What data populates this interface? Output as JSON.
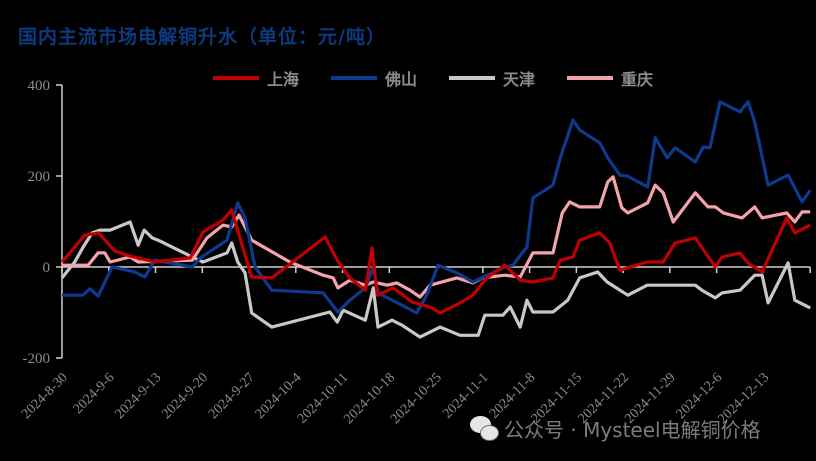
{
  "title": "国内主流市场电解铜升水（单位：元/吨）",
  "legend": [
    {
      "label": "上海",
      "color": "#c00000"
    },
    {
      "label": "佛山",
      "color": "#0d3a8c"
    },
    {
      "label": "天津",
      "color": "#c8c8c8"
    },
    {
      "label": "重庆",
      "color": "#f4a3ac"
    }
  ],
  "watermark": {
    "icon": "wechat-icon",
    "text": "公众号 · Mysteel电解铜价格"
  },
  "chart_data": {
    "type": "line",
    "title": "国内主流市场电解铜升水（单位：元/吨）",
    "xlabel": "",
    "ylabel": "元/吨",
    "ylim": [
      -200,
      400
    ],
    "yticks": [
      -200,
      0,
      200,
      400
    ],
    "x_unit": "days since 2024-8-30",
    "xlim": [
      0,
      112
    ],
    "xtick_labels": [
      "2024-8-30",
      "2024-9-6",
      "2024-9-13",
      "2024-9-20",
      "2024-9-27",
      "2024-10-4",
      "2024-10-11",
      "2024-10-18",
      "2024-10-25",
      "2024-11-1",
      "2024-11-8",
      "2024-11-15",
      "2024-11-22",
      "2024-11-29",
      "2024-12-6",
      "2024-12-13"
    ],
    "grid": false,
    "legend_position": "top",
    "series": [
      {
        "name": "上海",
        "color": "#c00000",
        "points": [
          [
            0,
            11
          ],
          [
            3.4,
            70
          ],
          [
            5.5,
            75
          ],
          [
            7.9,
            35
          ],
          [
            10.2,
            24
          ],
          [
            13.9,
            11
          ],
          [
            19.2,
            20
          ],
          [
            21.1,
            77
          ],
          [
            24.1,
            103
          ],
          [
            25.4,
            125
          ],
          [
            28.4,
            -22
          ],
          [
            31.4,
            -24
          ],
          [
            39.4,
            66
          ],
          [
            41.2,
            15
          ],
          [
            43.1,
            -24
          ],
          [
            45.4,
            -51
          ],
          [
            46.4,
            42
          ],
          [
            47.2,
            -62
          ],
          [
            49.6,
            -46
          ],
          [
            52.4,
            -77
          ],
          [
            55.1,
            -88
          ],
          [
            56.6,
            -101
          ],
          [
            59.6,
            -79
          ],
          [
            61.5,
            -62
          ],
          [
            63.6,
            -24
          ],
          [
            66.3,
            4
          ],
          [
            68.6,
            -29
          ],
          [
            70.5,
            -33
          ],
          [
            73.5,
            -24
          ],
          [
            74.6,
            15
          ],
          [
            76.5,
            22
          ],
          [
            77.5,
            59
          ],
          [
            80.5,
            75
          ],
          [
            82.0,
            53
          ],
          [
            83.5,
            -7
          ],
          [
            87.6,
            11
          ],
          [
            90.0,
            11
          ],
          [
            91.8,
            53
          ],
          [
            94.8,
            64
          ],
          [
            97.8,
            0
          ],
          [
            98.8,
            22
          ],
          [
            101.5,
            31
          ],
          [
            102.7,
            9
          ],
          [
            104.8,
            -11
          ],
          [
            108.5,
            108
          ],
          [
            109.7,
            75
          ],
          [
            112.0,
            92
          ]
        ]
      },
      {
        "name": "佛山",
        "color": "#0d3a8c",
        "points": [
          [
            0,
            -62
          ],
          [
            3.1,
            -62
          ],
          [
            4.2,
            -48
          ],
          [
            5.4,
            -64
          ],
          [
            7.5,
            0
          ],
          [
            10.9,
            -11
          ],
          [
            12.4,
            -22
          ],
          [
            13.9,
            15
          ],
          [
            19.5,
            0
          ],
          [
            20.7,
            20
          ],
          [
            24.7,
            59
          ],
          [
            26.3,
            141
          ],
          [
            27.4,
            108
          ],
          [
            28.9,
            0
          ],
          [
            31.4,
            -51
          ],
          [
            39.1,
            -57
          ],
          [
            41.3,
            -99
          ],
          [
            43.1,
            -73
          ],
          [
            45.4,
            -46
          ],
          [
            46.6,
            0
          ],
          [
            47.3,
            -57
          ],
          [
            50.9,
            -84
          ],
          [
            53.1,
            -101
          ],
          [
            54.6,
            -62
          ],
          [
            56.3,
            4
          ],
          [
            59.1,
            -13
          ],
          [
            61.5,
            -33
          ],
          [
            66.3,
            0
          ],
          [
            67.5,
            4
          ],
          [
            69.6,
            44
          ],
          [
            70.5,
            152
          ],
          [
            73.5,
            180
          ],
          [
            74.6,
            240
          ],
          [
            76.5,
            323
          ],
          [
            77.5,
            301
          ],
          [
            80.5,
            273
          ],
          [
            81.7,
            240
          ],
          [
            83.5,
            202
          ],
          [
            84.6,
            200
          ],
          [
            87.7,
            176
          ],
          [
            88.8,
            284
          ],
          [
            90.6,
            240
          ],
          [
            91.8,
            262
          ],
          [
            94.8,
            231
          ],
          [
            96.0,
            264
          ],
          [
            97.0,
            262
          ],
          [
            98.5,
            363
          ],
          [
            101.5,
            341
          ],
          [
            102.7,
            363
          ],
          [
            103.7,
            319
          ],
          [
            105.7,
            180
          ],
          [
            108.7,
            202
          ],
          [
            110.0,
            165
          ],
          [
            110.8,
            143
          ],
          [
            112.0,
            169
          ]
        ]
      },
      {
        "name": "天津",
        "color": "#c8c8c8",
        "points": [
          [
            0,
            -24
          ],
          [
            1.9,
            11
          ],
          [
            3.1,
            42
          ],
          [
            4.5,
            75
          ],
          [
            5.7,
            81
          ],
          [
            7.2,
            81
          ],
          [
            10.2,
            99
          ],
          [
            11.4,
            48
          ],
          [
            12.3,
            81
          ],
          [
            13.5,
            64
          ],
          [
            14.4,
            59
          ],
          [
            19.5,
            22
          ],
          [
            21.1,
            11
          ],
          [
            24.7,
            31
          ],
          [
            25.4,
            53
          ],
          [
            26.3,
            11
          ],
          [
            27.4,
            -13
          ],
          [
            28.4,
            -101
          ],
          [
            31.4,
            -132
          ],
          [
            40.1,
            -99
          ],
          [
            41.2,
            -121
          ],
          [
            42.1,
            -95
          ],
          [
            45.4,
            -117
          ],
          [
            46.6,
            -46
          ],
          [
            47.3,
            -132
          ],
          [
            49.4,
            -117
          ],
          [
            50.9,
            -128
          ],
          [
            53.6,
            -154
          ],
          [
            56.6,
            -132
          ],
          [
            59.6,
            -150
          ],
          [
            62.3,
            -150
          ],
          [
            63.3,
            -106
          ],
          [
            66.0,
            -106
          ],
          [
            67.1,
            -88
          ],
          [
            68.6,
            -132
          ],
          [
            69.6,
            -73
          ],
          [
            70.5,
            -99
          ],
          [
            73.5,
            -99
          ],
          [
            75.7,
            -73
          ],
          [
            77.5,
            -24
          ],
          [
            80.2,
            -11
          ],
          [
            81.6,
            -33
          ],
          [
            84.7,
            -62
          ],
          [
            87.6,
            -40
          ],
          [
            94.8,
            -40
          ],
          [
            95.8,
            -51
          ],
          [
            97.8,
            -68
          ],
          [
            98.8,
            -57
          ],
          [
            101.5,
            -51
          ],
          [
            103.7,
            -18
          ],
          [
            104.8,
            -18
          ],
          [
            105.7,
            -79
          ],
          [
            108.7,
            9
          ],
          [
            109.7,
            -73
          ],
          [
            112.0,
            -90
          ]
        ]
      },
      {
        "name": "重庆",
        "color": "#f4a3ac",
        "points": [
          [
            0,
            4
          ],
          [
            3.9,
            4
          ],
          [
            5.4,
            31
          ],
          [
            6.4,
            31
          ],
          [
            7.2,
            11
          ],
          [
            10.2,
            22
          ],
          [
            11.4,
            11
          ],
          [
            19.5,
            15
          ],
          [
            21.7,
            64
          ],
          [
            24.1,
            92
          ],
          [
            25.4,
            88
          ],
          [
            26.5,
            114
          ],
          [
            28.4,
            59
          ],
          [
            34.1,
            11
          ],
          [
            39.1,
            -18
          ],
          [
            40.6,
            -24
          ],
          [
            41.3,
            -46
          ],
          [
            43.1,
            -29
          ],
          [
            45.4,
            -40
          ],
          [
            46.6,
            -33
          ],
          [
            48.7,
            -40
          ],
          [
            50.1,
            -35
          ],
          [
            52.1,
            -51
          ],
          [
            53.6,
            -66
          ],
          [
            55.1,
            -40
          ],
          [
            59.1,
            -24
          ],
          [
            61.5,
            -35
          ],
          [
            62.9,
            -24
          ],
          [
            66.3,
            -18
          ],
          [
            68.6,
            -22
          ],
          [
            70.5,
            31
          ],
          [
            73.5,
            31
          ],
          [
            74.9,
            119
          ],
          [
            76.0,
            143
          ],
          [
            77.5,
            132
          ],
          [
            80.5,
            132
          ],
          [
            81.7,
            187
          ],
          [
            82.5,
            198
          ],
          [
            83.8,
            130
          ],
          [
            84.7,
            119
          ],
          [
            87.7,
            141
          ],
          [
            88.8,
            180
          ],
          [
            90.0,
            163
          ],
          [
            91.5,
            99
          ],
          [
            94.8,
            163
          ],
          [
            96.7,
            132
          ],
          [
            97.8,
            132
          ],
          [
            99.0,
            119
          ],
          [
            101.8,
            108
          ],
          [
            103.7,
            132
          ],
          [
            104.8,
            108
          ],
          [
            108.5,
            119
          ],
          [
            109.7,
            99
          ],
          [
            110.8,
            121
          ],
          [
            112.0,
            121
          ]
        ]
      }
    ]
  }
}
